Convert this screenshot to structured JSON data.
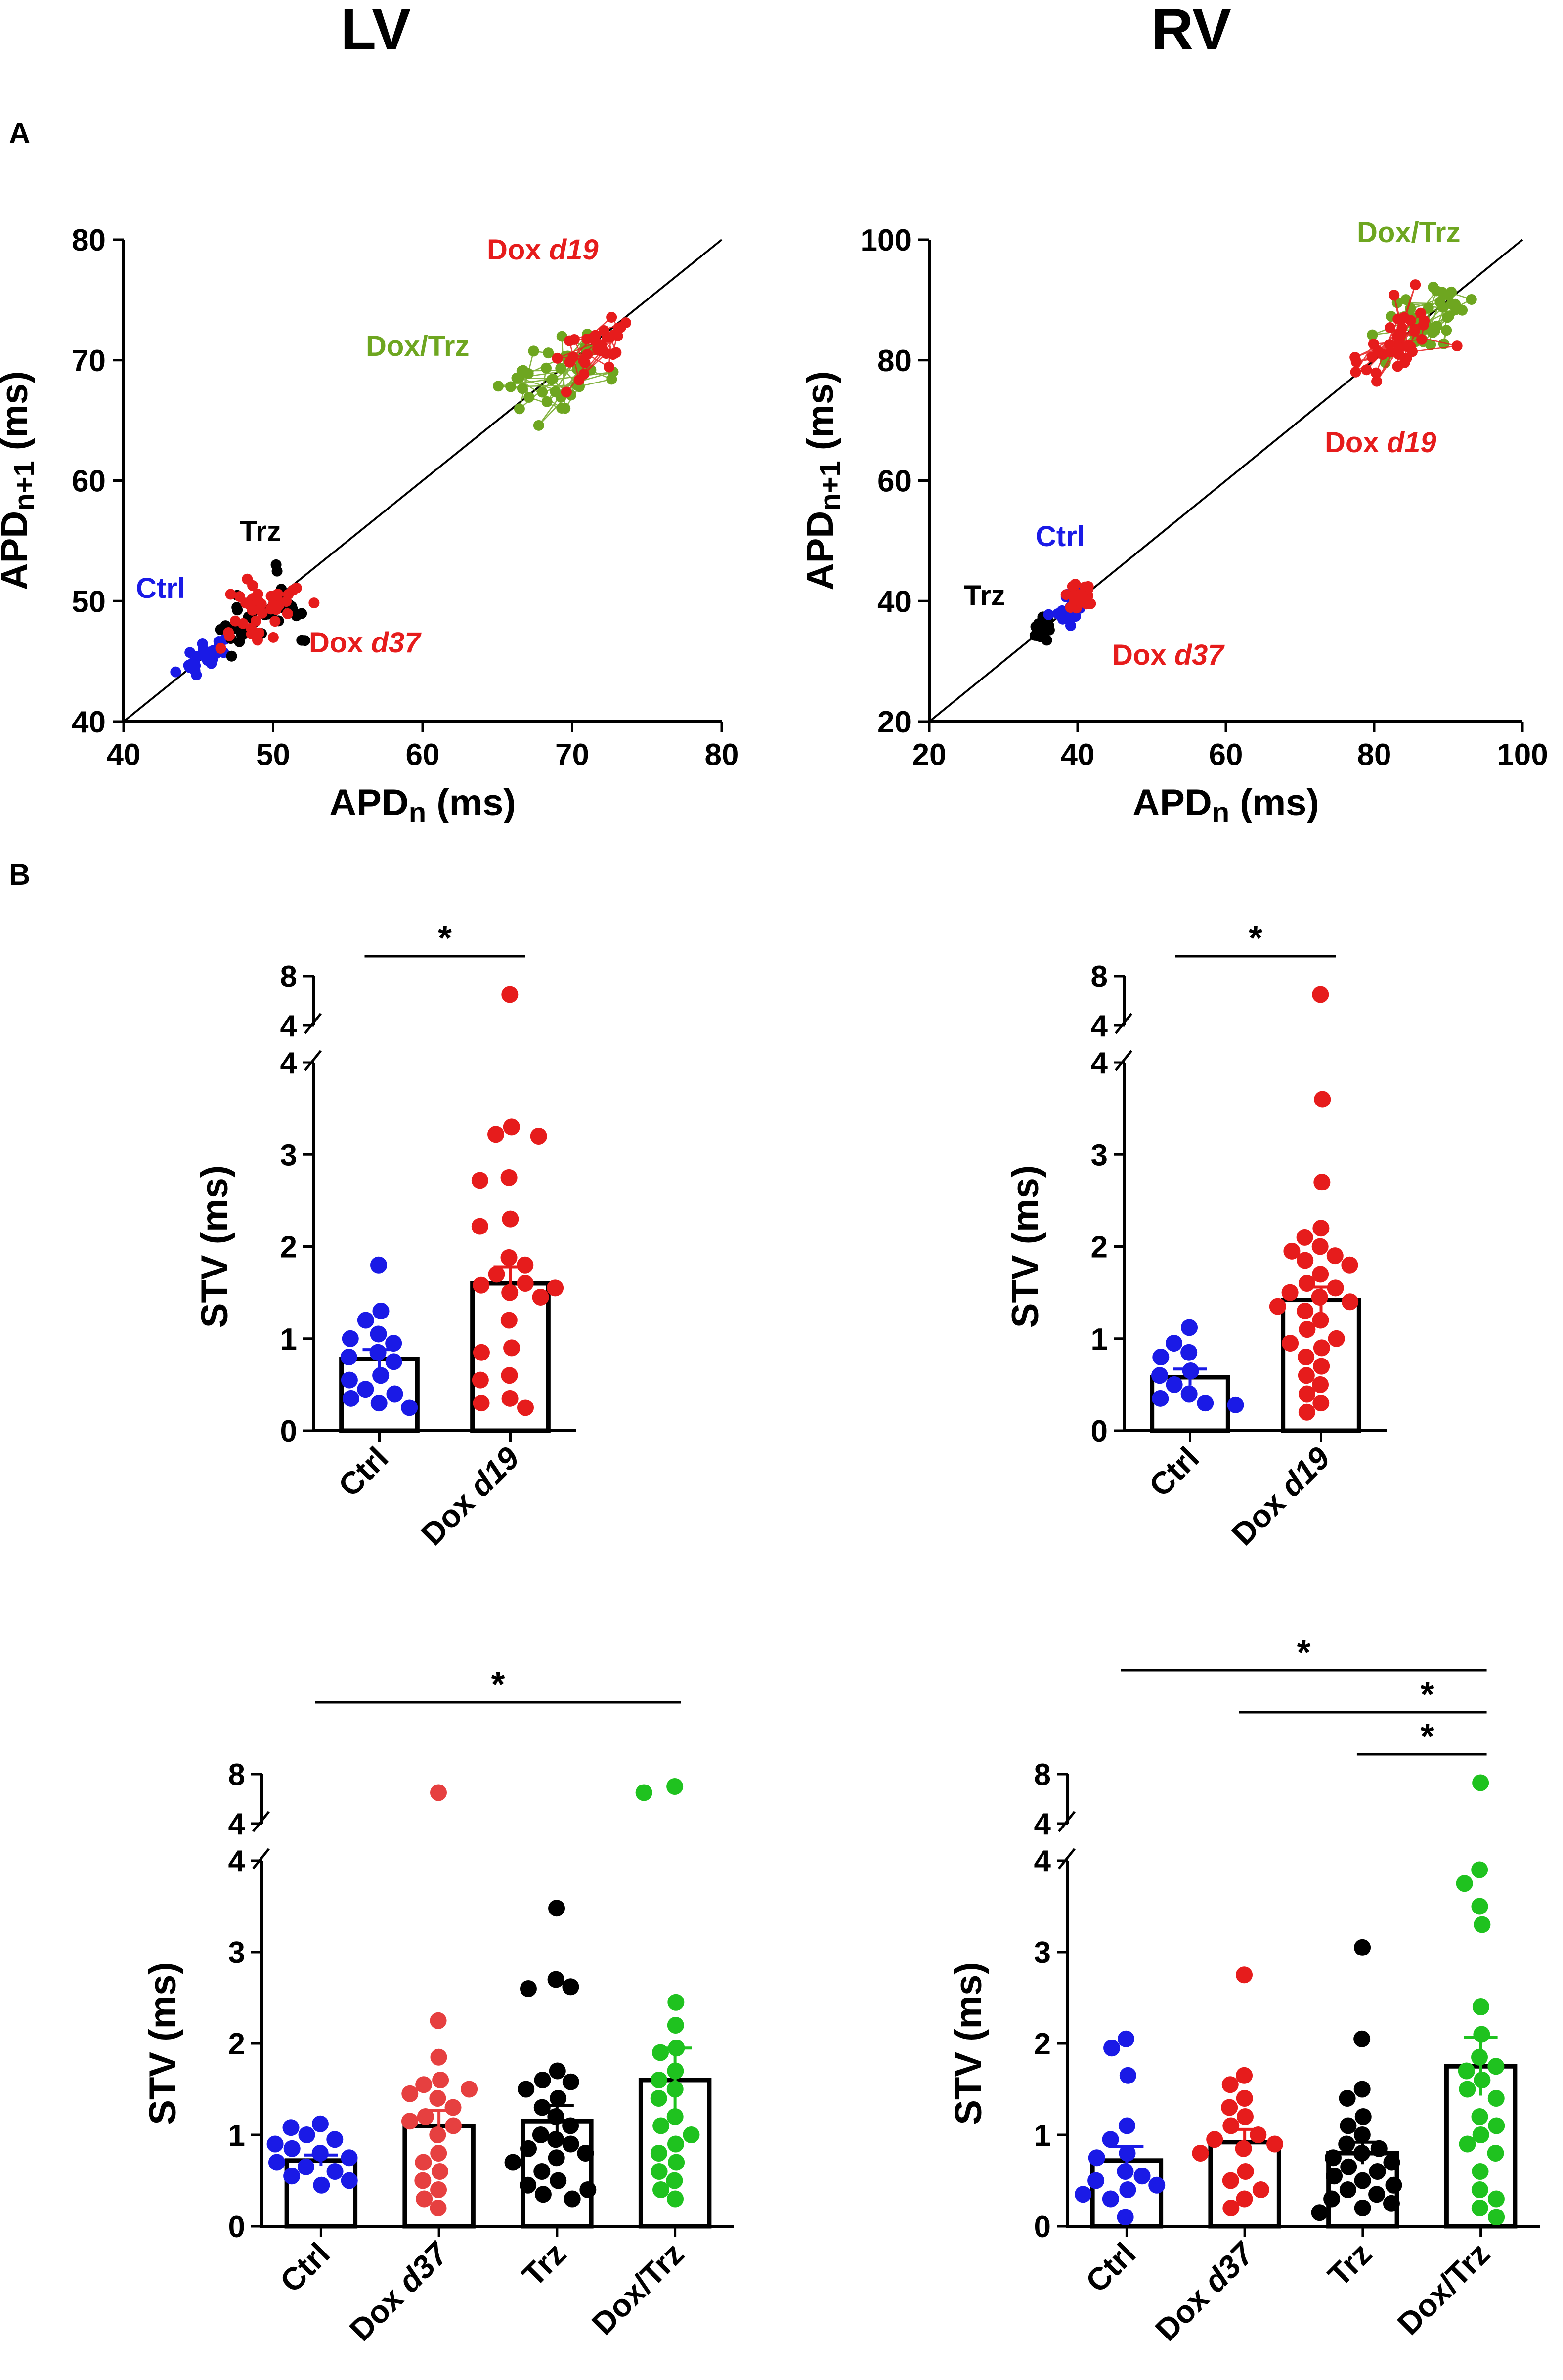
{
  "titles": {
    "left": "LV",
    "right": "RV"
  },
  "panel_labels": {
    "a": "A",
    "b": "B"
  },
  "colors": {
    "ctrl": "#1a1ae6",
    "dox": "#e61c1c",
    "trz": "#000000",
    "doxtrz_a": "#6ea620",
    "doxtrz_b": "#1fc21f"
  },
  "chart_data": [
    {
      "id": "poincare_lv",
      "type": "scatter",
      "title": "LV",
      "xlabel": "APD",
      "xlabel_sub": "n",
      "xlabel_unit": " (ms)",
      "ylabel": "APD",
      "ylabel_sub": "n+1",
      "ylabel_unit": " (ms)",
      "xlim": [
        40,
        80
      ],
      "ylim": [
        40,
        80
      ],
      "xticks": [
        40,
        50,
        60,
        70,
        80
      ],
      "yticks": [
        40,
        50,
        60,
        70,
        80
      ],
      "identity_line": true,
      "clusters": [
        {
          "name": "Ctrl",
          "italic": "",
          "color": "#1a1ae6",
          "cx": 45.5,
          "cy": 45.5,
          "sx": 0.8,
          "sy": 0.8,
          "n": 30,
          "lines": false
        },
        {
          "name": "Trz",
          "italic": "",
          "color": "#000000",
          "cx": 49.0,
          "cy": 49.0,
          "sx": 1.6,
          "sy": 1.5,
          "n": 40,
          "lines": false
        },
        {
          "name": "Dox ",
          "italic": "d37",
          "color": "#e61c1c",
          "cx": 49.5,
          "cy": 49.5,
          "sx": 1.3,
          "sy": 1.2,
          "n": 40,
          "lines": false
        },
        {
          "name": "Dox/Trz",
          "italic": "",
          "color": "#6ea620",
          "cx": 69.5,
          "cy": 68.8,
          "sx": 1.8,
          "sy": 1.8,
          "n": 38,
          "lines": true
        },
        {
          "name": "Dox ",
          "italic": "d19",
          "color": "#e61c1c",
          "cx": 71.5,
          "cy": 71.5,
          "sx": 1.4,
          "sy": 1.3,
          "n": 32,
          "lines": true
        }
      ]
    },
    {
      "id": "poincare_rv",
      "type": "scatter",
      "title": "RV",
      "xlabel": "APD",
      "xlabel_sub": "n",
      "xlabel_unit": " (ms)",
      "ylabel": "APD",
      "ylabel_sub": "n+1",
      "ylabel_unit": " (ms)",
      "xlim": [
        20,
        100
      ],
      "ylim": [
        20,
        100
      ],
      "xticks": [
        20,
        40,
        60,
        80,
        100
      ],
      "yticks": [
        20,
        40,
        60,
        80,
        100
      ],
      "identity_line": true,
      "clusters": [
        {
          "name": "Trz",
          "italic": "",
          "color": "#000000",
          "cx": 35.0,
          "cy": 35.5,
          "sx": 0.8,
          "sy": 0.9,
          "n": 25,
          "lines": false
        },
        {
          "name": "Ctrl",
          "italic": "",
          "color": "#1a1ae6",
          "cx": 38.5,
          "cy": 38.5,
          "sx": 1.2,
          "sy": 1.2,
          "n": 20,
          "lines": false
        },
        {
          "name": "Dox ",
          "italic": "d37",
          "color": "#e61c1c",
          "cx": 40.5,
          "cy": 40.5,
          "sx": 1.0,
          "sy": 1.2,
          "n": 28,
          "lines": false
        },
        {
          "name": "Dox/Trz",
          "italic": "",
          "color": "#6ea620",
          "cx": 87.0,
          "cy": 86.0,
          "sx": 3.2,
          "sy": 3.2,
          "n": 40,
          "lines": true
        },
        {
          "name": "Dox ",
          "italic": "d19",
          "color": "#e61c1c",
          "cx": 83.0,
          "cy": 83.0,
          "sx": 3.0,
          "sy": 3.0,
          "n": 40,
          "lines": true
        }
      ]
    },
    {
      "id": "stv_lv_top",
      "type": "bar",
      "ylabel": "STV (ms)",
      "yticks_lower": [
        0,
        1,
        2,
        3,
        4
      ],
      "yticks_upper": [
        4,
        8
      ],
      "categories": [
        {
          "name": "Ctrl",
          "italic": ""
        },
        {
          "name": "Dox ",
          "italic": "d19"
        }
      ],
      "bars": [
        {
          "mean": 0.78,
          "sem": 0.1,
          "color": "#1a1ae6",
          "points": [
            1.8,
            1.3,
            1.2,
            1.05,
            1.0,
            0.95,
            0.85,
            0.8,
            0.75,
            0.6,
            0.55,
            0.45,
            0.4,
            0.35,
            0.3,
            0.25
          ]
        },
        {
          "mean": 1.6,
          "sem": 0.18,
          "color": "#e61c1c",
          "points": [
            6.5,
            3.3,
            3.22,
            3.2,
            2.75,
            2.72,
            2.3,
            2.22,
            1.88,
            1.8,
            1.7,
            1.6,
            1.58,
            1.55,
            1.5,
            1.45,
            1.2,
            0.9,
            0.85,
            0.6,
            0.55,
            0.35,
            0.3,
            0.25
          ]
        }
      ],
      "significance": [
        {
          "from": 0,
          "to": 1,
          "label": "*"
        }
      ]
    },
    {
      "id": "stv_rv_top",
      "type": "bar",
      "ylabel": "STV (ms)",
      "yticks_lower": [
        0,
        1,
        2,
        3,
        4
      ],
      "yticks_upper": [
        4,
        8
      ],
      "categories": [
        {
          "name": "Ctrl",
          "italic": ""
        },
        {
          "name": "Dox ",
          "italic": "d19"
        }
      ],
      "bars": [
        {
          "mean": 0.58,
          "sem": 0.09,
          "color": "#1a1ae6",
          "points": [
            1.12,
            0.95,
            0.85,
            0.8,
            0.65,
            0.6,
            0.5,
            0.4,
            0.35,
            0.3,
            0.28
          ]
        },
        {
          "mean": 1.42,
          "sem": 0.14,
          "color": "#e61c1c",
          "points": [
            6.5,
            3.6,
            2.7,
            2.2,
            2.1,
            2.0,
            1.95,
            1.9,
            1.85,
            1.8,
            1.7,
            1.6,
            1.55,
            1.5,
            1.45,
            1.4,
            1.35,
            1.3,
            1.2,
            1.1,
            1.0,
            0.95,
            0.9,
            0.8,
            0.7,
            0.6,
            0.5,
            0.4,
            0.3,
            0.2
          ]
        }
      ],
      "significance": [
        {
          "from": 0,
          "to": 1,
          "label": "*"
        }
      ]
    },
    {
      "id": "stv_lv_bottom",
      "type": "bar",
      "ylabel": "STV (ms)",
      "yticks_lower": [
        0,
        1,
        2,
        3,
        4
      ],
      "yticks_upper": [
        4,
        8
      ],
      "categories": [
        {
          "name": "Ctrl",
          "italic": ""
        },
        {
          "name": "Dox ",
          "italic": "d37"
        },
        {
          "name": "Trz",
          "italic": ""
        },
        {
          "name": "Dox/Trz",
          "italic": ""
        }
      ],
      "bars": [
        {
          "mean": 0.72,
          "sem": 0.06,
          "color": "#1a1ae6",
          "points": [
            1.12,
            1.08,
            1.0,
            0.95,
            0.9,
            0.85,
            0.8,
            0.75,
            0.7,
            0.65,
            0.6,
            0.55,
            0.5,
            0.45
          ]
        },
        {
          "mean": 1.1,
          "sem": 0.17,
          "color": "#e64040",
          "points": [
            6.5,
            2.25,
            1.85,
            1.6,
            1.55,
            1.5,
            1.45,
            1.4,
            1.3,
            1.2,
            1.15,
            1.1,
            1.0,
            0.8,
            0.7,
            0.6,
            0.5,
            0.4,
            0.3,
            0.2
          ]
        },
        {
          "mean": 1.15,
          "sem": 0.17,
          "color": "#000000",
          "points": [
            3.48,
            2.7,
            2.62,
            2.6,
            1.7,
            1.6,
            1.58,
            1.5,
            1.4,
            1.3,
            1.2,
            1.1,
            1.0,
            0.95,
            0.9,
            0.85,
            0.8,
            0.75,
            0.7,
            0.6,
            0.5,
            0.45,
            0.4,
            0.35,
            0.3
          ]
        },
        {
          "mean": 1.6,
          "sem": 0.35,
          "color": "#1fc21f",
          "points": [
            7.0,
            6.5,
            2.45,
            2.2,
            1.95,
            1.9,
            1.7,
            1.6,
            1.5,
            1.4,
            1.2,
            1.1,
            1.0,
            0.9,
            0.8,
            0.7,
            0.6,
            0.5,
            0.4,
            0.3
          ]
        }
      ],
      "significance": [
        {
          "from": 0,
          "to": 3,
          "label": "*"
        }
      ]
    },
    {
      "id": "stv_rv_bottom",
      "type": "bar",
      "ylabel": "STV (ms)",
      "yticks_lower": [
        0,
        1,
        2,
        3,
        4
      ],
      "yticks_upper": [
        4,
        8
      ],
      "categories": [
        {
          "name": "Ctrl",
          "italic": ""
        },
        {
          "name": "Dox ",
          "italic": "d37"
        },
        {
          "name": "Trz",
          "italic": ""
        },
        {
          "name": "Dox/Trz",
          "italic": ""
        }
      ],
      "bars": [
        {
          "mean": 0.72,
          "sem": 0.15,
          "color": "#1a1ae6",
          "points": [
            2.05,
            1.95,
            1.65,
            1.1,
            0.95,
            0.8,
            0.75,
            0.6,
            0.55,
            0.5,
            0.45,
            0.4,
            0.35,
            0.3,
            0.1
          ]
        },
        {
          "mean": 0.92,
          "sem": 0.14,
          "color": "#e61c1c",
          "points": [
            2.75,
            1.65,
            1.55,
            1.4,
            1.3,
            1.2,
            1.1,
            1.0,
            0.95,
            0.9,
            0.85,
            0.8,
            0.6,
            0.5,
            0.4,
            0.3,
            0.2
          ]
        },
        {
          "mean": 0.8,
          "sem": 0.12,
          "color": "#000000",
          "points": [
            3.05,
            2.05,
            1.5,
            1.4,
            1.2,
            1.1,
            1.0,
            0.9,
            0.85,
            0.8,
            0.75,
            0.7,
            0.65,
            0.6,
            0.55,
            0.5,
            0.45,
            0.4,
            0.35,
            0.3,
            0.25,
            0.2,
            0.15
          ]
        },
        {
          "mean": 1.75,
          "sem": 0.32,
          "color": "#1fc21f",
          "points": [
            7.3,
            3.9,
            3.75,
            3.5,
            3.3,
            2.4,
            2.1,
            1.85,
            1.75,
            1.7,
            1.6,
            1.5,
            1.4,
            1.2,
            1.1,
            1.0,
            0.9,
            0.8,
            0.6,
            0.4,
            0.3,
            0.2,
            0.1
          ]
        }
      ],
      "significance": [
        {
          "from": 0,
          "to": 3,
          "label": "*"
        },
        {
          "from": 1,
          "to": 3,
          "label": "*"
        },
        {
          "from": 2,
          "to": 3,
          "label": "*"
        }
      ]
    }
  ]
}
